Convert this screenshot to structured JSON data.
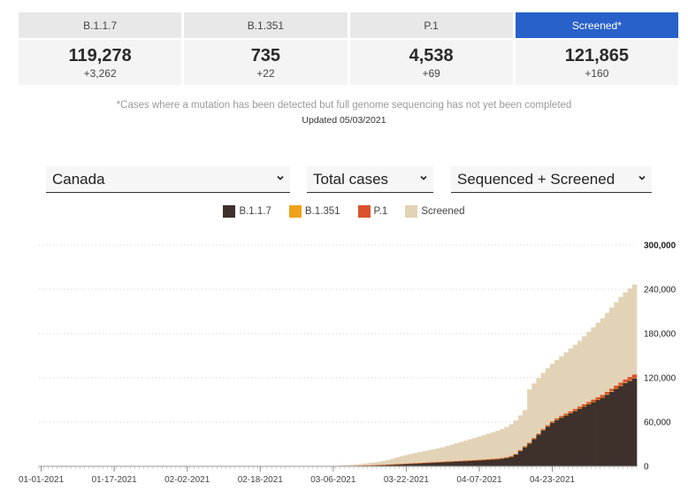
{
  "cards": [
    {
      "label": "B.1.1.7",
      "value": "119,278",
      "delta": "+3,262",
      "active": false
    },
    {
      "label": "B.1.351",
      "value": "735",
      "delta": "+22",
      "active": false
    },
    {
      "label": "P.1",
      "value": "4,538",
      "delta": "+69",
      "active": false
    },
    {
      "label": "Screened*",
      "value": "121,865",
      "delta": "+160",
      "active": true
    }
  ],
  "note": "*Cases where a mutation has been detected but full genome sequencing has not yet been completed",
  "updated": "Updated 05/03/2021",
  "controls": {
    "region": "Canada",
    "metric": "Total cases",
    "mode": "Sequenced + Screened"
  },
  "legend": [
    {
      "label": "B.1.1.7",
      "color": "#3e312c"
    },
    {
      "label": "B.1.351",
      "color": "#f0a21a"
    },
    {
      "label": "P.1",
      "color": "#d9522b"
    },
    {
      "label": "Screened",
      "color": "#e3d3b6"
    }
  ],
  "chart_data": {
    "type": "bar",
    "stacked": true,
    "x_start": "01-01-2021",
    "x_tick_labels": [
      "01-01-2021",
      "01-17-2021",
      "02-02-2021",
      "02-18-2021",
      "03-06-2021",
      "03-22-2021",
      "04-07-2021",
      "04-23-2021"
    ],
    "y_tick_labels": [
      "0",
      "60,000",
      "120,000",
      "180,000",
      "240,000",
      "300,000"
    ],
    "ylim": [
      0,
      300000
    ],
    "grid": true,
    "series": [
      {
        "name": "B.1.1.7",
        "color": "#3e312c",
        "values": [
          0,
          0,
          0,
          0,
          0,
          0,
          0,
          0,
          0,
          0,
          0,
          0,
          0,
          0,
          0,
          0,
          0,
          0,
          0,
          0,
          0,
          0,
          0,
          0,
          0,
          0,
          0,
          0,
          0,
          0,
          0,
          0,
          0,
          0,
          0,
          0,
          0,
          0,
          0,
          0,
          0,
          0,
          0,
          0,
          0,
          0,
          0,
          0,
          0,
          0,
          0,
          0,
          0,
          0,
          0,
          0,
          0,
          0,
          0,
          0,
          0,
          0,
          0,
          0,
          0,
          0,
          300,
          450,
          600,
          750,
          900,
          1100,
          1300,
          1500,
          1700,
          1900,
          2200,
          2500,
          2800,
          3100,
          3400,
          3700,
          4000,
          4300,
          4600,
          4900,
          5200,
          5500,
          5800,
          6100,
          6400,
          6700,
          7000,
          7300,
          7600,
          7900,
          8200,
          8600,
          9000,
          9400,
          9800,
          10500,
          11500,
          13000,
          16000,
          21000,
          26000,
          31000,
          37000,
          43000,
          49000,
          54000,
          59000,
          63000,
          66000,
          69000,
          72000,
          75000,
          78000,
          81000,
          84000,
          87000,
          90000,
          93000,
          97000,
          101000,
          105000,
          109000,
          113000,
          116000,
          119278
        ]
      },
      {
        "name": "B.1.351",
        "color": "#f0a21a",
        "values": [
          0,
          0,
          0,
          0,
          0,
          0,
          0,
          0,
          0,
          0,
          0,
          0,
          0,
          0,
          0,
          0,
          0,
          0,
          0,
          0,
          0,
          0,
          0,
          0,
          0,
          0,
          0,
          0,
          0,
          0,
          0,
          0,
          0,
          0,
          0,
          0,
          0,
          0,
          0,
          0,
          0,
          0,
          0,
          0,
          0,
          0,
          0,
          0,
          0,
          0,
          0,
          0,
          0,
          0,
          0,
          0,
          0,
          0,
          0,
          0,
          0,
          0,
          0,
          0,
          0,
          0,
          20,
          30,
          40,
          50,
          60,
          70,
          80,
          90,
          100,
          110,
          120,
          130,
          140,
          150,
          160,
          170,
          180,
          190,
          200,
          210,
          220,
          230,
          240,
          250,
          260,
          270,
          280,
          290,
          300,
          310,
          320,
          330,
          340,
          350,
          360,
          370,
          380,
          390,
          400,
          410,
          420,
          430,
          440,
          450,
          460,
          470,
          480,
          490,
          500,
          510,
          520,
          530,
          545,
          560,
          575,
          590,
          605,
          620,
          640,
          660,
          680,
          700,
          713,
          725,
          735
        ]
      },
      {
        "name": "P.1",
        "color": "#d9522b",
        "values": [
          0,
          0,
          0,
          0,
          0,
          0,
          0,
          0,
          0,
          0,
          0,
          0,
          0,
          0,
          0,
          0,
          0,
          0,
          0,
          0,
          0,
          0,
          0,
          0,
          0,
          0,
          0,
          0,
          0,
          0,
          0,
          0,
          0,
          0,
          0,
          0,
          0,
          0,
          0,
          0,
          0,
          0,
          0,
          0,
          0,
          0,
          0,
          0,
          0,
          0,
          0,
          0,
          0,
          0,
          0,
          0,
          0,
          0,
          0,
          0,
          0,
          0,
          0,
          0,
          0,
          0,
          10,
          15,
          20,
          25,
          30,
          35,
          40,
          50,
          60,
          70,
          80,
          90,
          100,
          110,
          120,
          130,
          140,
          150,
          160,
          170,
          180,
          190,
          200,
          215,
          230,
          245,
          260,
          275,
          290,
          305,
          320,
          340,
          360,
          380,
          400,
          430,
          470,
          520,
          600,
          700,
          800,
          900,
          1000,
          1100,
          1250,
          1400,
          1550,
          1700,
          1850,
          2000,
          2150,
          2300,
          2450,
          2600,
          2750,
          2900,
          3050,
          3200,
          3400,
          3600,
          3800,
          4000,
          4200,
          4400,
          4538
        ]
      },
      {
        "name": "Screened",
        "color": "#e3d3b6",
        "values": [
          0,
          0,
          0,
          0,
          0,
          0,
          0,
          0,
          0,
          0,
          0,
          0,
          0,
          0,
          0,
          0,
          0,
          0,
          0,
          0,
          0,
          0,
          0,
          0,
          0,
          0,
          0,
          0,
          0,
          0,
          0,
          0,
          0,
          0,
          0,
          0,
          0,
          0,
          0,
          0,
          0,
          0,
          0,
          0,
          0,
          0,
          0,
          0,
          0,
          0,
          0,
          0,
          0,
          0,
          0,
          0,
          0,
          0,
          0,
          0,
          0,
          0,
          0,
          0,
          0,
          0,
          800,
          1000,
          1300,
          1600,
          2000,
          2500,
          3000,
          3500,
          4000,
          5000,
          6000,
          7500,
          9000,
          10500,
          11500,
          12500,
          13500,
          14500,
          15500,
          16500,
          17500,
          18500,
          19500,
          21000,
          22500,
          24000,
          25500,
          27000,
          28500,
          30000,
          31500,
          33000,
          34500,
          36000,
          37500,
          39000,
          41000,
          43000,
          45000,
          47000,
          49000,
          72000,
          74000,
          75000,
          76000,
          77000,
          78000,
          79000,
          81000,
          83000,
          85000,
          87000,
          89000,
          92000,
          95000,
          98000,
          101000,
          104000,
          107000,
          110000,
          113000,
          116000,
          118000,
          120000,
          121865
        ]
      }
    ]
  }
}
